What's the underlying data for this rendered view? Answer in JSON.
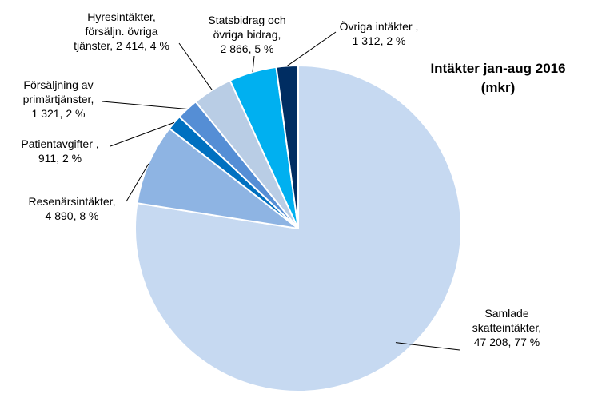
{
  "chart_data": {
    "type": "pie",
    "title_lines": [
      "Intäkter jan-aug 2016",
      "(mkr)"
    ],
    "slices": [
      {
        "label_lines": [
          "Samlade",
          "skatteintäkter,",
          "47 208, 77 %"
        ],
        "value": 47208,
        "percent": 77,
        "color": "#c6d9f1"
      },
      {
        "label_lines": [
          "Resenärsintäkter,",
          "4 890, 8 %"
        ],
        "value": 4890,
        "percent": 8,
        "color": "#8eb4e3"
      },
      {
        "label_lines": [
          "Patientavgifter ,",
          "911, 2 %"
        ],
        "value": 911,
        "percent": 2,
        "color": "#0070c0"
      },
      {
        "label_lines": [
          "Försäljning av",
          "primärtjänster,",
          "1 321, 2 %"
        ],
        "value": 1321,
        "percent": 2,
        "color": "#558ed5"
      },
      {
        "label_lines": [
          "Hyresintäkter,",
          "försäljn. övriga",
          "tjänster, 2 414, 4 %"
        ],
        "value": 2414,
        "percent": 4,
        "color": "#b9cde5"
      },
      {
        "label_lines": [
          "Statsbidrag och",
          "övriga bidrag,",
          "2 866, 5 %"
        ],
        "value": 2866,
        "percent": 5,
        "color": "#00b0f0"
      },
      {
        "label_lines": [
          "Övriga intäkter ,",
          "1 312, 2 %"
        ],
        "value": 1312,
        "percent": 2,
        "color": "#002d62"
      }
    ]
  }
}
